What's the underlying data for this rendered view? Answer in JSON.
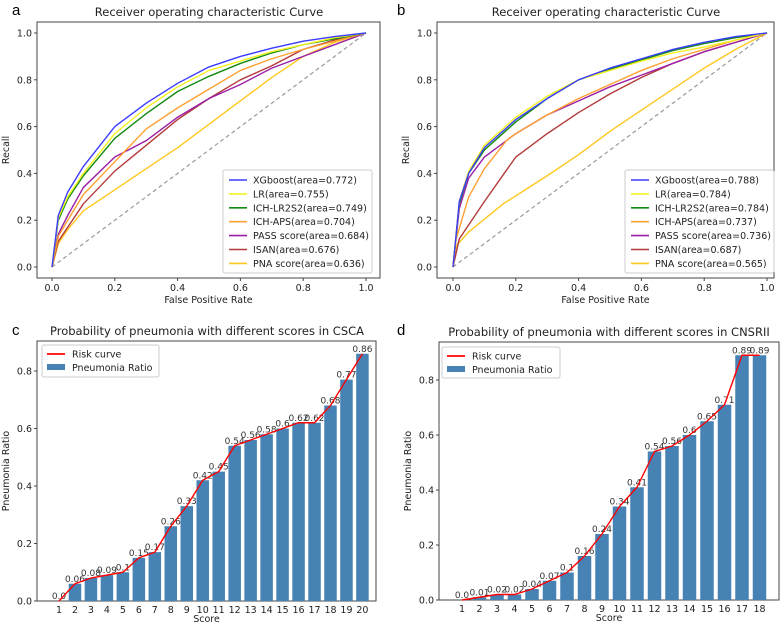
{
  "chart_data": [
    {
      "panel": "a",
      "type": "line",
      "title": "Receiver operating characteristic Curve",
      "xlabel": "False Positive Rate",
      "ylabel": "Recall",
      "xlim": [
        0,
        1
      ],
      "ylim": [
        0,
        1
      ],
      "xticks": [
        "0.0",
        "0.2",
        "0.4",
        "0.6",
        "0.8",
        "1.0"
      ],
      "yticks": [
        "0.0",
        "0.2",
        "0.4",
        "0.6",
        "0.8",
        "1.0"
      ],
      "legend_placement": "lower-right",
      "diagonal": {
        "style": "dashed",
        "color": "#999999"
      },
      "series": [
        {
          "name": "XGboost(area=0.772)",
          "color": "#3c3cff",
          "x": [
            0,
            0.02,
            0.05,
            0.1,
            0.2,
            0.3,
            0.4,
            0.5,
            0.6,
            0.7,
            0.8,
            0.9,
            1
          ],
          "y": [
            0,
            0.22,
            0.32,
            0.43,
            0.6,
            0.7,
            0.785,
            0.855,
            0.9,
            0.935,
            0.965,
            0.985,
            1
          ]
        },
        {
          "name": "LR(area=0.755)",
          "color": "#f2f222",
          "x": [
            0,
            0.02,
            0.05,
            0.1,
            0.2,
            0.3,
            0.4,
            0.5,
            0.6,
            0.7,
            0.8,
            0.9,
            1
          ],
          "y": [
            0,
            0.21,
            0.3,
            0.4,
            0.57,
            0.68,
            0.77,
            0.84,
            0.88,
            0.92,
            0.95,
            0.98,
            1
          ]
        },
        {
          "name": "ICH-LR2S2(area=0.749)",
          "color": "#138a13",
          "x": [
            0,
            0.02,
            0.05,
            0.1,
            0.2,
            0.3,
            0.4,
            0.5,
            0.6,
            0.7,
            0.8,
            0.9,
            1
          ],
          "y": [
            0,
            0.2,
            0.29,
            0.39,
            0.55,
            0.655,
            0.75,
            0.815,
            0.87,
            0.915,
            0.95,
            0.975,
            1
          ]
        },
        {
          "name": "ICH-APS(area=0.704)",
          "color": "#ffa030",
          "x": [
            0,
            0.02,
            0.05,
            0.1,
            0.2,
            0.3,
            0.4,
            0.5,
            0.6,
            0.7,
            0.8,
            0.9,
            1
          ],
          "y": [
            0,
            0.13,
            0.2,
            0.31,
            0.45,
            0.59,
            0.68,
            0.76,
            0.84,
            0.89,
            0.93,
            0.965,
            1
          ]
        },
        {
          "name": "PASS score(area=0.684)",
          "color": "#9a1fa6",
          "x": [
            0,
            0.02,
            0.05,
            0.1,
            0.2,
            0.3,
            0.4,
            0.5,
            0.6,
            0.7,
            0.8,
            0.9,
            1
          ],
          "y": [
            0,
            0.14,
            0.22,
            0.34,
            0.47,
            0.54,
            0.64,
            0.72,
            0.78,
            0.85,
            0.9,
            0.95,
            1
          ]
        },
        {
          "name": "ISAN(area=0.676)",
          "color": "#b33a3a",
          "x": [
            0,
            0.02,
            0.05,
            0.1,
            0.2,
            0.3,
            0.4,
            0.5,
            0.6,
            0.7,
            0.8,
            0.9,
            1
          ],
          "y": [
            0,
            0.11,
            0.17,
            0.27,
            0.41,
            0.52,
            0.63,
            0.72,
            0.8,
            0.86,
            0.93,
            0.97,
            1
          ]
        },
        {
          "name": "PNA score(area=0.636)",
          "color": "#ffc820",
          "x": [
            0,
            0.02,
            0.05,
            0.1,
            0.2,
            0.3,
            0.4,
            0.5,
            0.6,
            0.7,
            0.8,
            0.9,
            1
          ],
          "y": [
            0,
            0.1,
            0.16,
            0.24,
            0.33,
            0.42,
            0.51,
            0.61,
            0.71,
            0.81,
            0.9,
            0.96,
            1
          ]
        }
      ]
    },
    {
      "panel": "b",
      "type": "line",
      "title": "Receiver operating characteristic Curve",
      "xlabel": "False Positive Rate",
      "ylabel": "Recall",
      "xlim": [
        0,
        1
      ],
      "ylim": [
        0,
        1
      ],
      "xticks": [
        "0.0",
        "0.2",
        "0.4",
        "0.6",
        "0.8",
        "1.0"
      ],
      "yticks": [
        "0.0",
        "0.2",
        "0.4",
        "0.6",
        "0.8",
        "1.0"
      ],
      "legend_placement": "lower-right",
      "diagonal": {
        "style": "dashed",
        "color": "#999999"
      },
      "series": [
        {
          "name": "XGboost(area=0.788)",
          "color": "#3c3cff",
          "x": [
            0,
            0.02,
            0.05,
            0.1,
            0.2,
            0.3,
            0.4,
            0.5,
            0.6,
            0.7,
            0.8,
            0.9,
            1
          ],
          "y": [
            0,
            0.28,
            0.4,
            0.51,
            0.63,
            0.72,
            0.8,
            0.85,
            0.89,
            0.93,
            0.96,
            0.985,
            1
          ]
        },
        {
          "name": "LR(area=0.784)",
          "color": "#f2f222",
          "x": [
            0,
            0.02,
            0.05,
            0.1,
            0.2,
            0.3,
            0.4,
            0.5,
            0.6,
            0.7,
            0.8,
            0.9,
            1
          ],
          "y": [
            0,
            0.28,
            0.41,
            0.52,
            0.64,
            0.73,
            0.8,
            0.84,
            0.88,
            0.915,
            0.94,
            0.97,
            1
          ]
        },
        {
          "name": "ICH-LR2S2(area=0.784)",
          "color": "#138a13",
          "x": [
            0,
            0.02,
            0.05,
            0.1,
            0.2,
            0.3,
            0.4,
            0.5,
            0.6,
            0.7,
            0.8,
            0.9,
            1
          ],
          "y": [
            0,
            0.27,
            0.4,
            0.5,
            0.62,
            0.72,
            0.8,
            0.845,
            0.885,
            0.925,
            0.955,
            0.98,
            1
          ]
        },
        {
          "name": "ICH-APS(area=0.737)",
          "color": "#ffa030",
          "x": [
            0,
            0.01,
            0.05,
            0.1,
            0.17,
            0.2,
            0.3,
            0.4,
            0.5,
            0.6,
            0.7,
            0.8,
            0.9,
            1
          ],
          "y": [
            0,
            0.12,
            0.3,
            0.42,
            0.54,
            0.57,
            0.65,
            0.72,
            0.78,
            0.84,
            0.89,
            0.93,
            0.97,
            1
          ]
        },
        {
          "name": "PASS score(area=0.736)",
          "color": "#9a1fa6",
          "x": [
            0,
            0.02,
            0.05,
            0.1,
            0.2,
            0.3,
            0.4,
            0.5,
            0.6,
            0.7,
            0.8,
            0.9,
            1
          ],
          "y": [
            0,
            0.25,
            0.38,
            0.47,
            0.57,
            0.65,
            0.71,
            0.77,
            0.82,
            0.87,
            0.92,
            0.96,
            1
          ]
        },
        {
          "name": "ISAN(area=0.687)",
          "color": "#b33a3a",
          "x": [
            0,
            0.02,
            0.05,
            0.1,
            0.2,
            0.3,
            0.4,
            0.5,
            0.6,
            0.7,
            0.8,
            0.9,
            1
          ],
          "y": [
            0,
            0.12,
            0.18,
            0.28,
            0.47,
            0.57,
            0.66,
            0.74,
            0.81,
            0.87,
            0.92,
            0.96,
            1
          ]
        },
        {
          "name": "PNA score(area=0.565)",
          "color": "#ffc820",
          "x": [
            0,
            0.01,
            0.05,
            0.16,
            0.3,
            0.4,
            0.5,
            0.6,
            0.7,
            0.8,
            0.9,
            1
          ],
          "y": [
            0,
            0.09,
            0.15,
            0.27,
            0.39,
            0.48,
            0.58,
            0.67,
            0.76,
            0.85,
            0.93,
            1
          ]
        }
      ]
    },
    {
      "panel": "c",
      "type": "bar",
      "title": "Probability of pneumonia with different scores in CSCA",
      "xlabel": "Score",
      "ylabel": "Pneumonia Ratio",
      "ylim": [
        0,
        0.9
      ],
      "yticks": [
        "0.0",
        "0.2",
        "0.4",
        "0.6",
        "0.8"
      ],
      "legend_placement": "upper-left",
      "legend": [
        "Risk curve",
        "Pneumonia Ratio"
      ],
      "bar_color": "#4682b4",
      "curve_color": "#ff0000",
      "categories": [
        "1",
        "2",
        "3",
        "4",
        "5",
        "6",
        "7",
        "8",
        "9",
        "10",
        "11",
        "12",
        "13",
        "14",
        "15",
        "16",
        "17",
        "18",
        "19",
        "20"
      ],
      "values": [
        0.0,
        0.06,
        0.08,
        0.09,
        0.1,
        0.15,
        0.17,
        0.26,
        0.33,
        0.42,
        0.45,
        0.54,
        0.56,
        0.58,
        0.6,
        0.62,
        0.62,
        0.68,
        0.77,
        0.86
      ],
      "labels": [
        "0.0",
        "0.06",
        "0.08",
        "0.09",
        "0.1",
        "0.15",
        "0.17",
        "0.26",
        "0.33",
        "0.42",
        "0.45",
        "0.54",
        "0.56",
        "0.58",
        "0.6",
        "0.62",
        "0.62",
        "0.68",
        "0.77",
        "0.86"
      ]
    },
    {
      "panel": "d",
      "type": "bar",
      "title": "Probability of pneumonia with different scores in CNSRII",
      "xlabel": "Score",
      "ylabel": "Pneumonia Ratio",
      "ylim": [
        0,
        0.93
      ],
      "yticks": [
        "0.0",
        "0.2",
        "0.4",
        "0.6",
        "0.8"
      ],
      "legend_placement": "upper-left",
      "legend": [
        "Risk curve",
        "Pneumonia Ratio"
      ],
      "bar_color": "#4682b4",
      "curve_color": "#ff0000",
      "categories": [
        "1",
        "2",
        "3",
        "4",
        "5",
        "6",
        "7",
        "8",
        "9",
        "10",
        "11",
        "12",
        "13",
        "14",
        "15",
        "16",
        "17",
        "18"
      ],
      "values": [
        0.0,
        0.01,
        0.02,
        0.02,
        0.04,
        0.07,
        0.1,
        0.16,
        0.24,
        0.34,
        0.41,
        0.54,
        0.56,
        0.6,
        0.65,
        0.71,
        0.89,
        0.89
      ],
      "labels": [
        "0.0",
        "0.01",
        "0.02",
        "0.02",
        "0.04",
        "0.07",
        "0.1",
        "0.16",
        "0.24",
        "0.34",
        "0.41",
        "0.54",
        "0.56",
        "0.6",
        "0.65",
        "0.71",
        "0.89",
        "0.89"
      ]
    }
  ]
}
